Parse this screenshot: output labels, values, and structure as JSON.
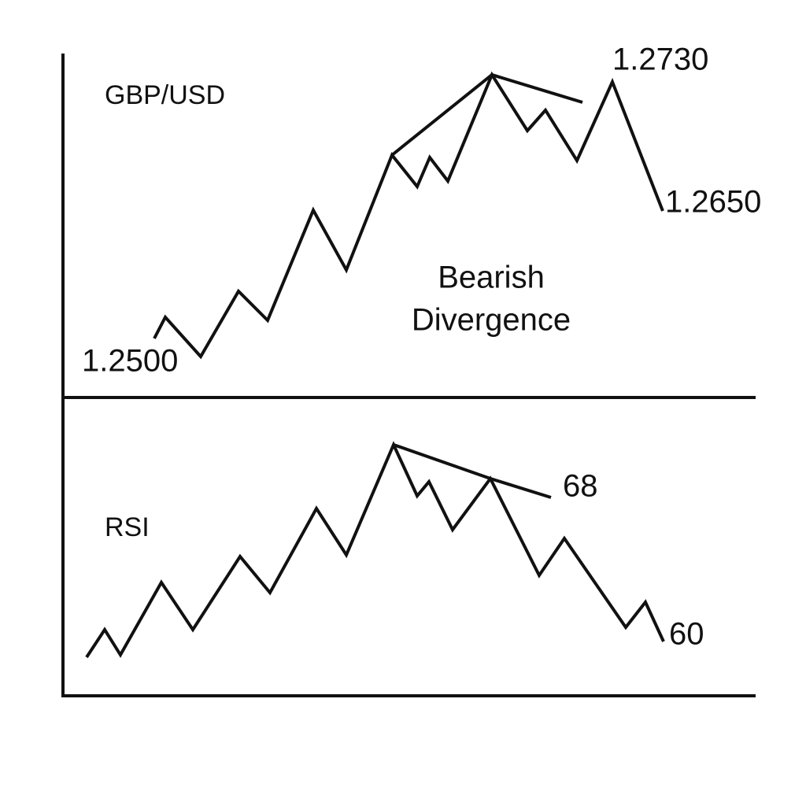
{
  "panels": [
    {
      "label": "GBP/USD",
      "annotations": [
        "1.2730",
        "1.2650",
        "1.2500"
      ]
    },
    {
      "label": "RSI",
      "annotations": [
        "68",
        "60"
      ]
    }
  ],
  "caption": {
    "lines": [
      "Bearish",
      "Divergence"
    ]
  }
}
